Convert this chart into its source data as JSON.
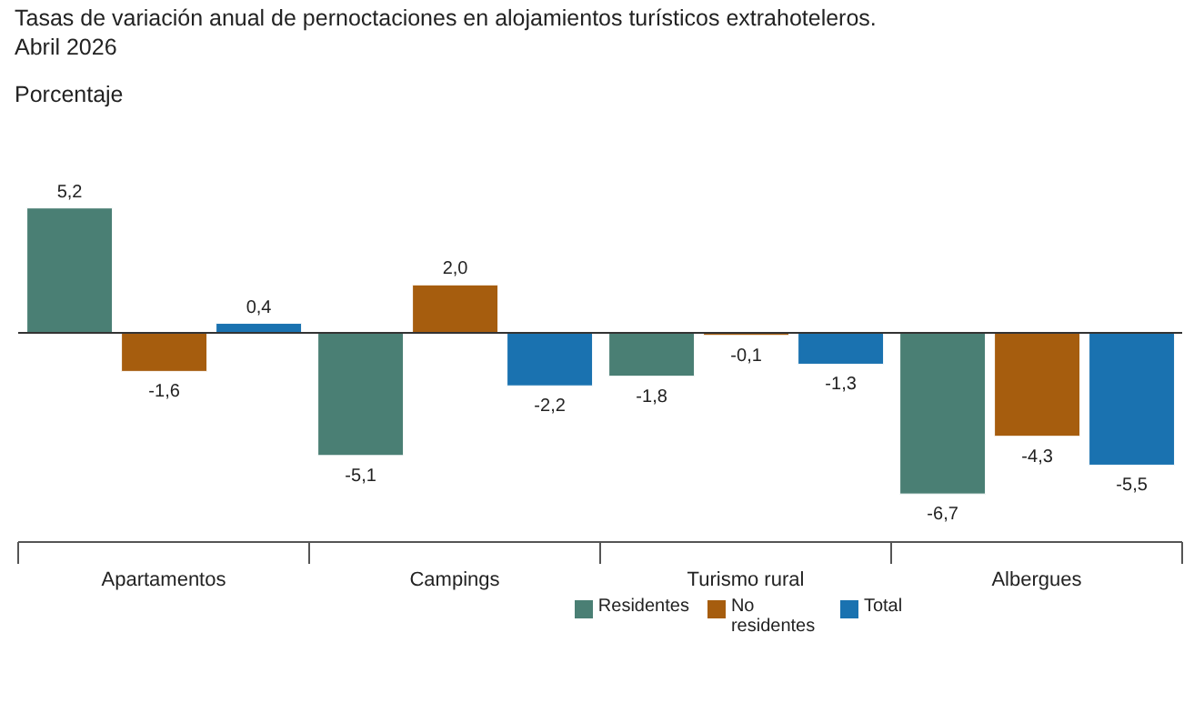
{
  "chart_data": {
    "type": "bar",
    "title": "Tasas de variación anual de pernoctaciones en alojamientos turísticos extrahoteleros.",
    "subtitle": "Abril 2026",
    "ylabel": "Porcentaje",
    "categories": [
      "Apartamentos",
      "Campings",
      "Turismo rural",
      "Albergues"
    ],
    "series": [
      {
        "name": "Residentes",
        "color": "#4a7f74",
        "values": [
          5.2,
          -5.1,
          -1.8,
          -6.7
        ],
        "value_labels": [
          "5,2",
          "-5,1",
          "-1,8",
          "-6,7"
        ]
      },
      {
        "name": "No residentes",
        "color": "#a65d0e",
        "values": [
          -1.6,
          2.0,
          -0.1,
          -4.3
        ],
        "value_labels": [
          "-1,6",
          "2,0",
          "-0,1",
          "-4,3"
        ]
      },
      {
        "name": "Total",
        "color": "#1a72b0",
        "values": [
          0.4,
          -2.2,
          -1.3,
          -5.5
        ],
        "value_labels": [
          "0,4",
          "-2,2",
          "-1,3",
          "-5,5"
        ]
      }
    ],
    "ref_lines": [
      {
        "axis": "y",
        "value": 0,
        "color": "#333333"
      }
    ],
    "legend": "bottom",
    "grid": false
  }
}
